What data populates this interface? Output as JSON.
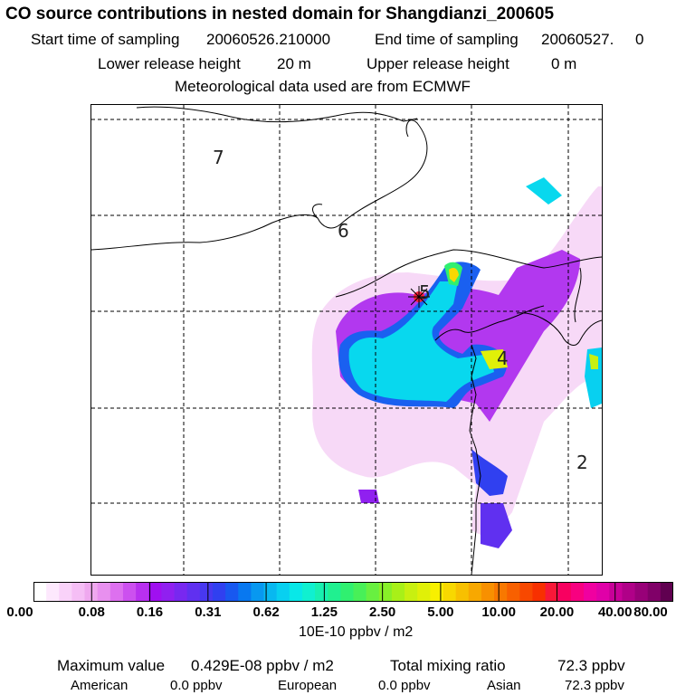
{
  "header": {
    "title": "CO  source contributions in nested domain for Shangdianzi_200605",
    "start_label": "Start time of sampling",
    "start_value": "20060526.210000",
    "end_label": "End time of sampling",
    "end_value": "20060527.     0",
    "lower_label": "Lower release height",
    "lower_value": "20 m",
    "upper_label": "Upper release height",
    "upper_value": "0 m",
    "met_text": "Meteorological data used are from ECMWF"
  },
  "map": {
    "region_numbers": [
      "7",
      "6",
      "5",
      "4",
      "2"
    ],
    "receptor_marker": "star-icon"
  },
  "colorbar": {
    "ticks": [
      "0.00",
      "0.08",
      "0.16",
      "0.31",
      "0.62",
      "1.25",
      "2.50",
      "5.00",
      "10.00",
      "20.00",
      "40.00",
      "80.00"
    ],
    "units": "10E-10 ppbv / m2",
    "colors": [
      "#ffffff",
      "#fde8fd",
      "#f9d2f9",
      "#f5bef5",
      "#efa8ef",
      "#e890ef",
      "#dd70ef",
      "#cc50ef",
      "#b830ef",
      "#a010f0",
      "#9020f0",
      "#7828f0",
      "#6030f0",
      "#4838f0",
      "#3040f0",
      "#1858f0",
      "#0878f0",
      "#0898f0",
      "#08b8f0",
      "#08d0f0",
      "#08e8e8",
      "#10f0d0",
      "#18f0b0",
      "#20f090",
      "#30f070",
      "#48f058",
      "#68f040",
      "#88f028",
      "#a8f018",
      "#c8f010",
      "#e0f008",
      "#f8f000",
      "#f8d800",
      "#f8c000",
      "#f8a800",
      "#f89000",
      "#f87800",
      "#f86000",
      "#f84800",
      "#f83000",
      "#f81838",
      "#f80060",
      "#f80080",
      "#f000a0",
      "#e000a8",
      "#c80098",
      "#b00088",
      "#980078",
      "#800068",
      "#600050"
    ]
  },
  "stats": {
    "max_label": "Maximum value",
    "max_value": "0.429E-08 ppbv / m2",
    "total_label": "Total mixing ratio",
    "total_value": "72.3 ppbv",
    "american_label": "American",
    "american_value": "0.0 ppbv",
    "european_label": "European",
    "european_value": "0.0 ppbv",
    "asian_label": "Asian",
    "asian_value": "72.3 ppbv"
  }
}
